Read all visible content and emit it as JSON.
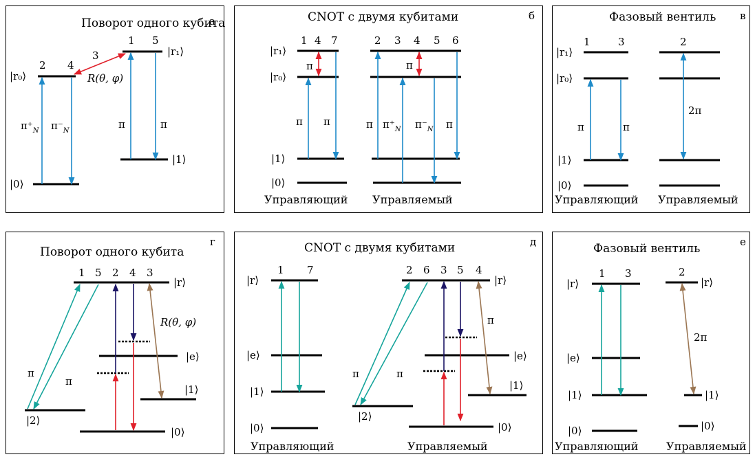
{
  "panels": {
    "a": {
      "title": "Поворот одного кубита",
      "letter": "а",
      "level_r0": "|r₀⟩",
      "level_r1": "|r₁⟩",
      "level_0": "|0⟩",
      "level_1": "|1⟩",
      "num_1": "1",
      "num_2": "2",
      "num_3": "3",
      "num_4": "4",
      "num_5": "5",
      "op": "R(θ, φ)",
      "pi_plus": "π⁺",
      "pi_minus": "π⁻",
      "pi_sub": "N",
      "pi_left": "π",
      "pi_right": "π"
    },
    "b": {
      "title": "CNOT с двумя кубитами",
      "letter": "б",
      "level_r1": "|r₁⟩",
      "level_r0": "|r₀⟩",
      "level_1": "|1⟩",
      "level_0": "|0⟩",
      "ctrl_nums": [
        "1",
        "4",
        "7"
      ],
      "tgt_nums": [
        "2",
        "3",
        "4",
        "5",
        "6"
      ],
      "pi_ctrl_mid": "π",
      "pi_tgt_mid": "π",
      "pi_c1": "π",
      "pi_c2": "π",
      "pi_t1": "π",
      "pi_plus": "π⁺",
      "pi_minus": "π⁻",
      "pi_sub": "N",
      "pi_t2": "π",
      "control": "Управляющий",
      "target": "Управляемый"
    },
    "c": {
      "title": "Фазовый вентиль",
      "letter": "в",
      "level_r1": "|r₁⟩",
      "level_r0": "|r₀⟩",
      "level_1": "|1⟩",
      "level_0": "|0⟩",
      "num_1": "1",
      "num_3": "3",
      "num_2": "2",
      "pi_1": "π",
      "pi_2": "π",
      "two_pi": "2π",
      "control": "Управляющий",
      "target": "Управляемый"
    },
    "d": {
      "title": "Поворот одного кубита",
      "letter": "г",
      "level_r": "|r⟩",
      "level_e": "|e⟩",
      "level_1": "|1⟩",
      "level_2": "|2⟩",
      "level_0": "|0⟩",
      "nums": [
        "1",
        "5",
        "2",
        "4",
        "3"
      ],
      "op": "R(θ, φ)",
      "pi_1": "π",
      "pi_2": "π"
    },
    "e": {
      "title": "CNOT с двумя кубитами",
      "letter": "д",
      "level_r_c": "|r⟩",
      "level_e_c": "|e⟩",
      "level_1_c": "|1⟩",
      "level_0_c": "|0⟩",
      "level_r_t": "|r⟩",
      "level_e_t": "|e⟩",
      "level_1_t": "|1⟩",
      "level_2_t": "|2⟩",
      "level_0_t": "|0⟩",
      "ctrl_nums": [
        "1",
        "7"
      ],
      "tgt_nums": [
        "2",
        "6",
        "3",
        "5",
        "4"
      ],
      "pi_1": "π",
      "pi_2": "π",
      "pi_3": "π",
      "control": "Управляющий",
      "target": "Управляемый"
    },
    "f": {
      "title": "Фазовый вентиль",
      "letter": "е",
      "level_r_c": "|r⟩",
      "level_e_c": "|e⟩",
      "level_1_c": "|1⟩",
      "level_0_c": "|0⟩",
      "level_r_t": "|r⟩",
      "level_1_t": "|1⟩",
      "level_0_t": "|0⟩",
      "num_1": "1",
      "num_3": "3",
      "num_2": "2",
      "two_pi": "2π",
      "control": "Управляющий",
      "target": "Управляемый"
    }
  },
  "colors": {
    "blue": "#1f8bc9",
    "red": "#e0202a",
    "teal": "#17a59c",
    "navy": "#1b1464",
    "brown": "#9b7653"
  }
}
